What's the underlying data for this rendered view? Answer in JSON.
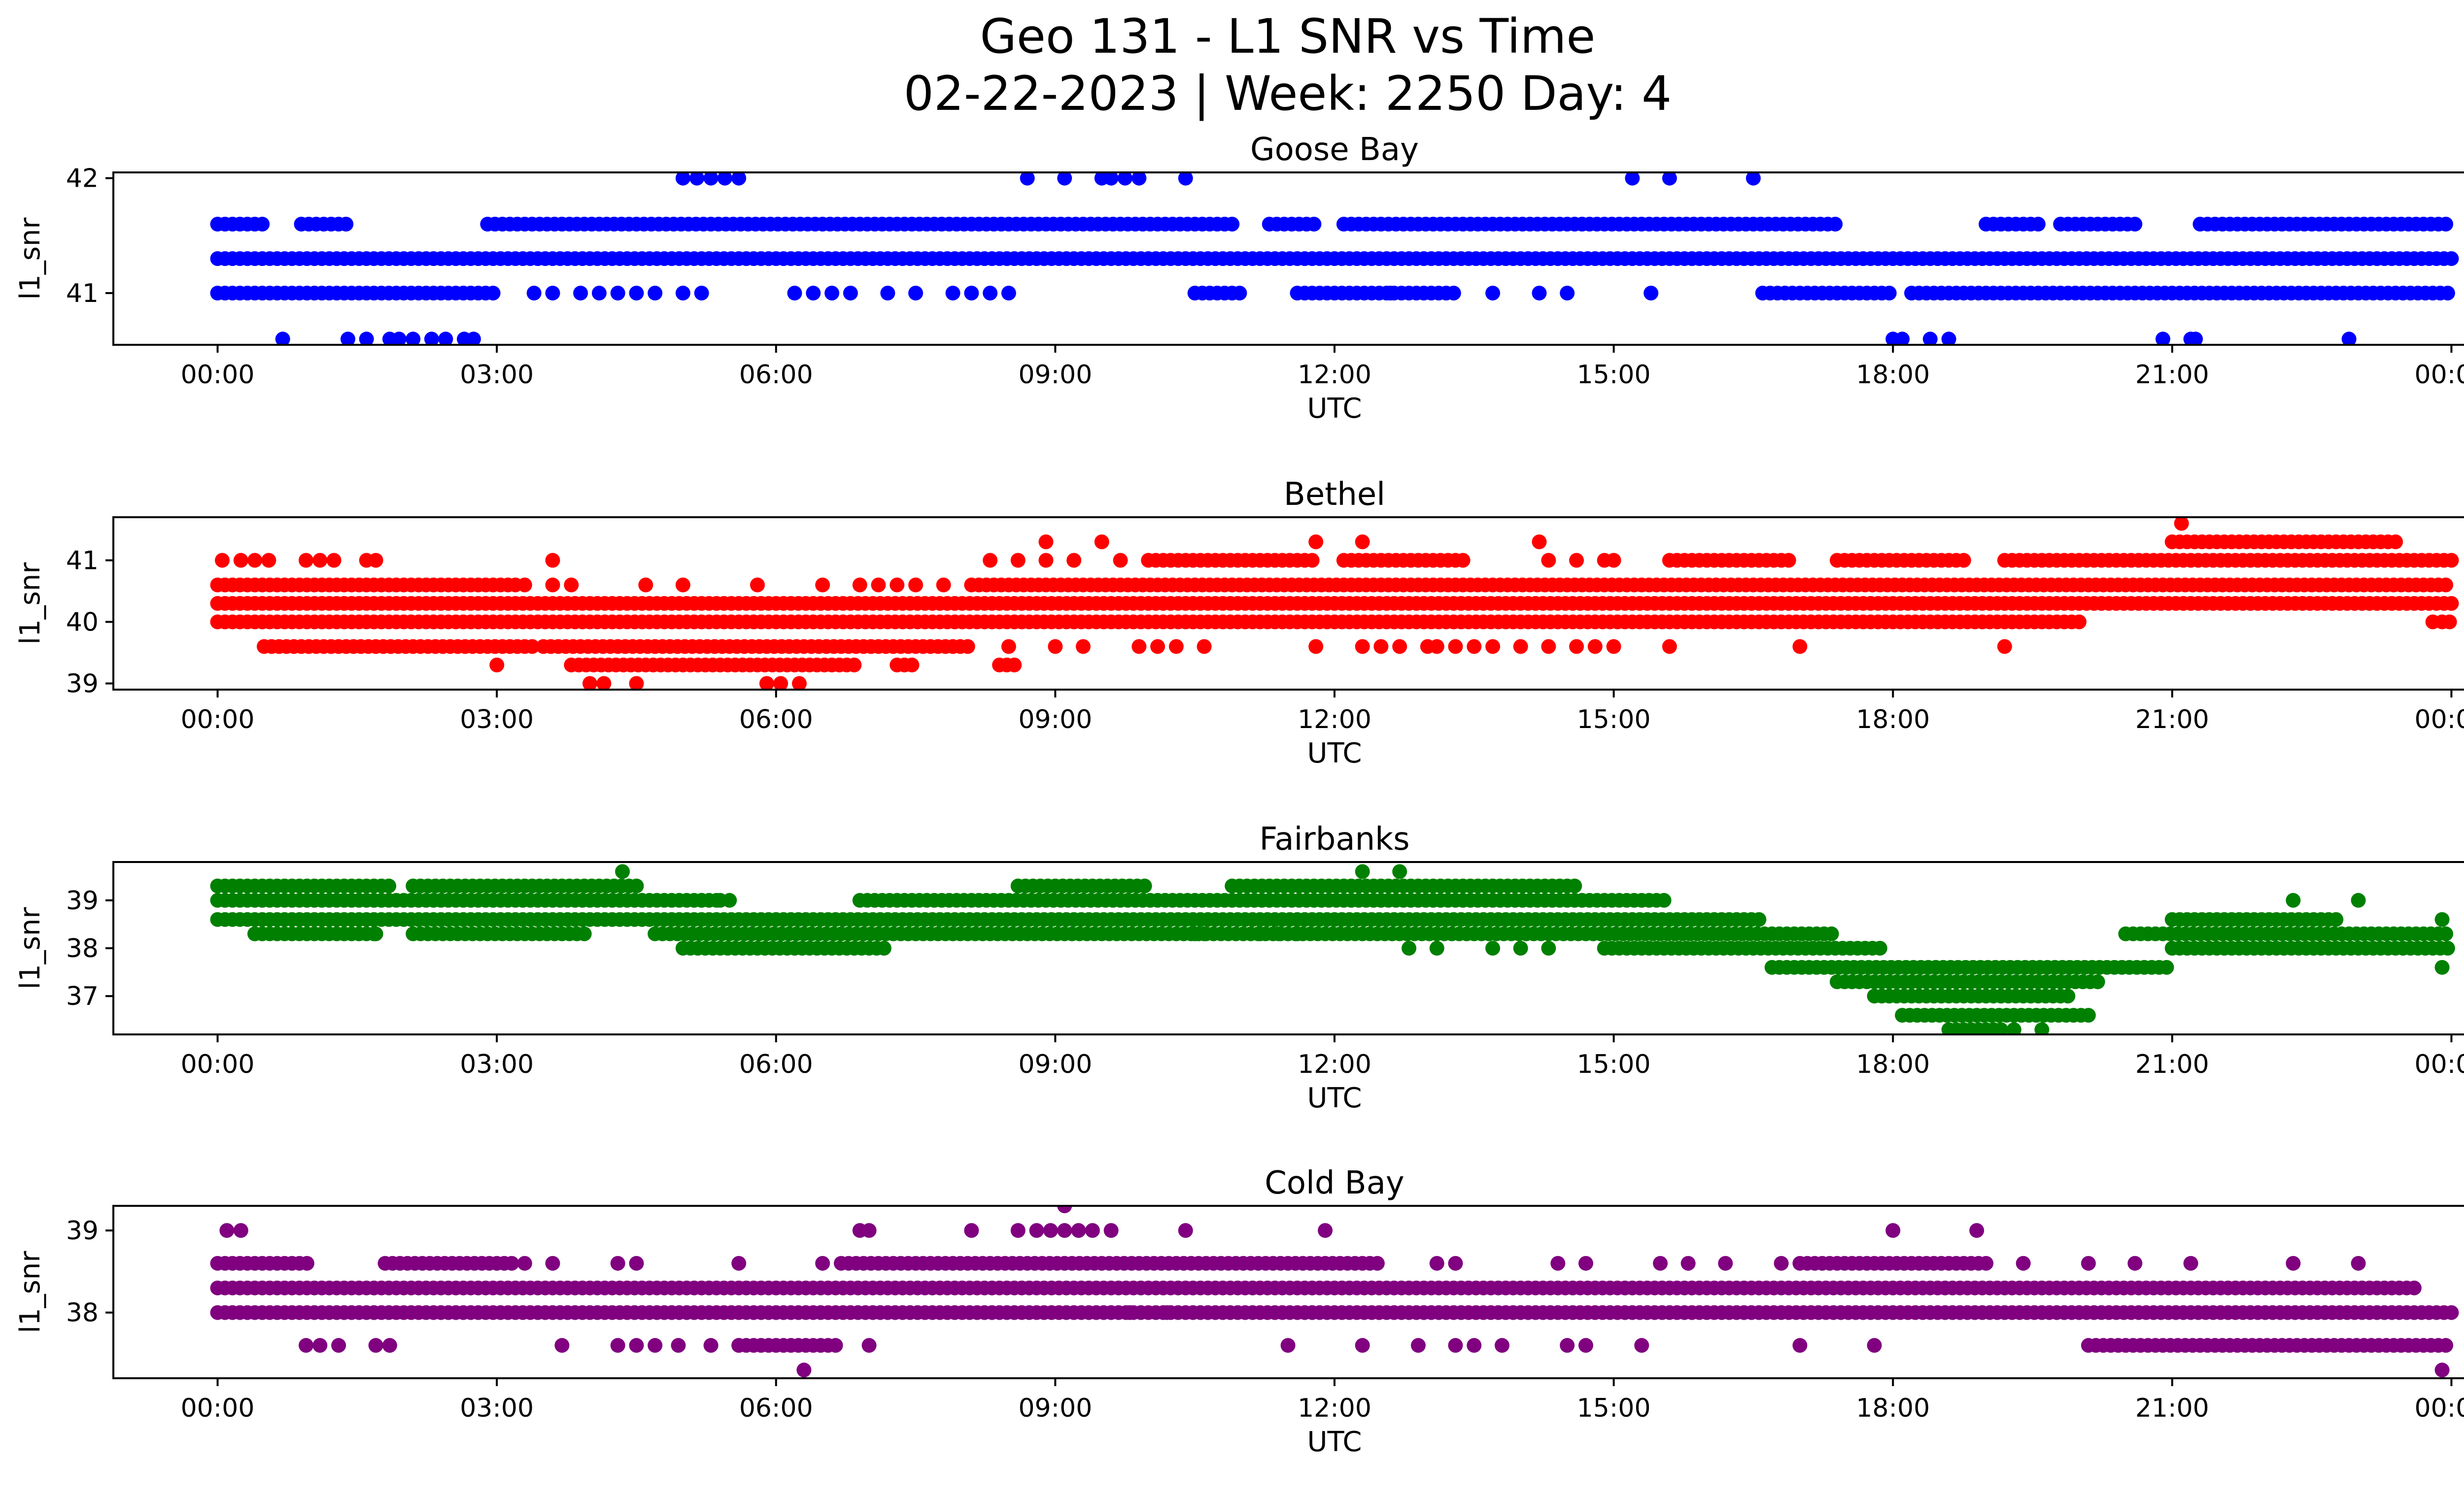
{
  "figure": {
    "title_line1": "Geo 131 - L1 SNR vs Time",
    "title_line2": "02-22-2023 | Week: 2250 Day: 4"
  },
  "chart_data": [
    {
      "type": "scatter",
      "title": "Goose Bay",
      "xlabel": "UTC",
      "ylabel": "l1_snr",
      "color": "#0000ff",
      "xlim_hours": [
        -1.12,
        25.12
      ],
      "ylim": [
        40.55,
        42.05
      ],
      "x_ticks": [
        0,
        3,
        6,
        9,
        12,
        15,
        18,
        21,
        24
      ],
      "x_tick_labels": [
        "00:00",
        "03:00",
        "06:00",
        "09:00",
        "12:00",
        "15:00",
        "18:00",
        "21:00",
        "00:00"
      ],
      "y_ticks": [
        41,
        42
      ],
      "y_tick_labels": [
        "41",
        "42"
      ],
      "bands": [
        {
          "y": 41.3,
          "ranges": [
            [
              0,
              24
            ]
          ]
        },
        {
          "y": 41.0,
          "ranges": [
            [
              0,
              3.0
            ],
            [
              10.5,
              11.0
            ],
            [
              11.6,
              13.3
            ],
            [
              16.6,
              18.0
            ],
            [
              18.2,
              24
            ]
          ]
        },
        {
          "y": 41.6,
          "ranges": [
            [
              0,
              0.5
            ],
            [
              0.9,
              1.4
            ],
            [
              2.9,
              10.9
            ],
            [
              11.3,
              11.8
            ],
            [
              12.1,
              17.4
            ],
            [
              19.0,
              19.6
            ],
            [
              19.8,
              20.6
            ],
            [
              21.3,
              24
            ]
          ]
        }
      ],
      "points": [
        {
          "y": 41.0,
          "x": [
            3.4,
            3.6,
            3.9,
            4.1,
            4.3,
            4.5,
            4.7,
            5.0,
            5.2,
            6.2,
            6.4,
            6.6,
            6.8,
            7.2,
            7.5,
            7.9,
            8.1,
            8.3,
            8.5,
            12.6,
            13.7,
            14.2,
            14.5,
            15.4
          ]
        },
        {
          "y": 42.0,
          "x": [
            5.0,
            5.15,
            5.3,
            5.45,
            5.6,
            8.7,
            9.1,
            9.5,
            9.6,
            9.75,
            9.9,
            10.4,
            15.2,
            15.6,
            16.5
          ]
        },
        {
          "y": 40.6,
          "x": [
            0.7,
            1.4,
            1.6,
            1.85,
            1.95,
            2.1,
            2.3,
            2.45,
            2.65,
            2.75,
            18.0,
            18.1,
            18.4,
            18.6,
            20.9,
            21.2,
            21.25,
            22.9
          ]
        }
      ]
    },
    {
      "type": "scatter",
      "title": "Bethel",
      "xlabel": "UTC",
      "ylabel": "l1_snr",
      "color": "#ff0000",
      "xlim_hours": [
        -1.12,
        25.12
      ],
      "ylim": [
        38.9,
        41.7
      ],
      "x_ticks": [
        0,
        3,
        6,
        9,
        12,
        15,
        18,
        21,
        24
      ],
      "x_tick_labels": [
        "00:00",
        "03:00",
        "06:00",
        "09:00",
        "12:00",
        "15:00",
        "18:00",
        "21:00",
        "00:00"
      ],
      "y_ticks": [
        39,
        40,
        41
      ],
      "y_tick_labels": [
        "39",
        "40",
        "41"
      ],
      "bands": [
        {
          "y": 40.3,
          "ranges": [
            [
              0,
              24
            ]
          ]
        },
        {
          "y": 40.0,
          "ranges": [
            [
              0,
              20.0
            ],
            [
              23.9,
              24
            ]
          ]
        },
        {
          "y": 40.6,
          "ranges": [
            [
              0,
              3.2
            ],
            [
              8.1,
              24
            ]
          ]
        },
        {
          "y": 39.6,
          "ranges": [
            [
              0.5,
              3.4
            ],
            [
              3.5,
              8.1
            ]
          ]
        },
        {
          "y": 39.3,
          "ranges": [
            [
              3.8,
              6.9
            ],
            [
              7.3,
              7.5
            ],
            [
              8.4,
              8.6
            ]
          ]
        },
        {
          "y": 41.0,
          "ranges": [
            [
              10.0,
              11.8
            ],
            [
              12.1,
              13.4
            ],
            [
              15.6,
              16.9
            ],
            [
              17.4,
              18.8
            ],
            [
              19.2,
              24
            ]
          ]
        },
        {
          "y": 41.3,
          "ranges": [
            [
              21.0,
              23.4
            ]
          ]
        }
      ],
      "points": [
        {
          "y": 41.0,
          "x": [
            0.05,
            0.25,
            0.4,
            0.55,
            0.95,
            1.1,
            1.25,
            1.6,
            1.7,
            3.6,
            8.3,
            8.6,
            8.9,
            9.2,
            9.7,
            14.3,
            14.6,
            14.9,
            15.0
          ]
        },
        {
          "y": 41.3,
          "x": [
            8.9,
            9.5,
            11.8,
            12.3,
            14.2
          ]
        },
        {
          "y": 41.6,
          "x": [
            21.1
          ]
        },
        {
          "y": 39.0,
          "x": [
            4.0,
            4.15,
            4.5,
            5.9,
            6.05,
            6.25
          ]
        },
        {
          "y": 39.6,
          "x": [
            8.5,
            9.0,
            9.3,
            9.9,
            10.1,
            10.3,
            10.6,
            11.8,
            12.3,
            12.5,
            12.7,
            13.0,
            13.1,
            13.3,
            13.5,
            13.7,
            14.0,
            14.3,
            14.6,
            14.8,
            15.0,
            15.6,
            17.0,
            19.2
          ]
        },
        {
          "y": 39.3,
          "x": [
            3.0
          ]
        },
        {
          "y": 40.6,
          "x": [
            3.3,
            3.6,
            3.8,
            4.6,
            5.0,
            5.8,
            6.5,
            6.9,
            7.1,
            7.3,
            7.5,
            7.8
          ]
        },
        {
          "y": 40.0,
          "x": [
            23.8
          ]
        }
      ]
    },
    {
      "type": "scatter",
      "title": "Fairbanks",
      "xlabel": "UTC",
      "ylabel": "l1_snr",
      "color": "#008000",
      "xlim_hours": [
        -1.12,
        25.12
      ],
      "ylim": [
        36.2,
        39.8
      ],
      "x_ticks": [
        0,
        3,
        6,
        9,
        12,
        15,
        18,
        21,
        24
      ],
      "x_tick_labels": [
        "00:00",
        "03:00",
        "06:00",
        "09:00",
        "12:00",
        "15:00",
        "18:00",
        "21:00",
        "00:00"
      ],
      "y_ticks": [
        37,
        38,
        39
      ],
      "y_tick_labels": [
        "37",
        "38",
        "39"
      ],
      "bands": [
        {
          "y": 38.6,
          "ranges": [
            [
              0,
              16.6
            ]
          ]
        },
        {
          "y": 39.0,
          "ranges": [
            [
              0,
              5.4
            ],
            [
              6.9,
              15.6
            ]
          ]
        },
        {
          "y": 38.3,
          "ranges": [
            [
              0.4,
              1.7
            ],
            [
              2.1,
              4.0
            ],
            [
              4.7,
              17.4
            ]
          ]
        },
        {
          "y": 39.3,
          "ranges": [
            [
              0,
              1.9
            ],
            [
              2.1,
              4.5
            ],
            [
              8.6,
              10.0
            ],
            [
              10.9,
              14.6
            ]
          ]
        },
        {
          "y": 38.0,
          "ranges": [
            [
              5.0,
              7.2
            ],
            [
              14.9,
              17.9
            ]
          ]
        },
        {
          "y": 37.6,
          "ranges": [
            [
              16.7,
              21.0
            ]
          ]
        },
        {
          "y": 37.3,
          "ranges": [
            [
              17.4,
              20.2
            ]
          ]
        },
        {
          "y": 37.0,
          "ranges": [
            [
              17.8,
              19.9
            ]
          ]
        },
        {
          "y": 36.6,
          "ranges": [
            [
              18.1,
              20.1
            ]
          ]
        },
        {
          "y": 36.3,
          "ranges": [
            [
              18.6,
              19.2
            ]
          ]
        },
        {
          "y": 38.0,
          "ranges": [
            [
              21.0,
              24
            ]
          ]
        },
        {
          "y": 38.3,
          "ranges": [
            [
              20.5,
              24
            ]
          ]
        },
        {
          "y": 38.6,
          "ranges": [
            [
              21.0,
              22.8
            ]
          ]
        }
      ],
      "points": [
        {
          "y": 39.6,
          "x": [
            4.35,
            12.3,
            12.7
          ]
        },
        {
          "y": 39.0,
          "x": [
            5.2,
            5.4,
            5.5,
            22.3,
            23.0
          ]
        },
        {
          "y": 38.3,
          "x": [
            0.4,
            1.7,
            10.5,
            10.6,
            11.2,
            11.4,
            11.6
          ]
        },
        {
          "y": 38.0,
          "x": [
            12.8,
            13.1,
            13.7,
            14.0,
            14.3
          ]
        },
        {
          "y": 36.3,
          "x": [
            19.3,
            19.6
          ]
        },
        {
          "y": 37.6,
          "x": [
            23.9
          ]
        },
        {
          "y": 38.6,
          "x": [
            23.9
          ]
        }
      ]
    },
    {
      "type": "scatter",
      "title": "Cold Bay",
      "xlabel": "UTC",
      "ylabel": "l1_snr",
      "color": "#800080",
      "xlim_hours": [
        -1.12,
        25.12
      ],
      "ylim": [
        37.2,
        39.3
      ],
      "x_ticks": [
        0,
        3,
        6,
        9,
        12,
        15,
        18,
        21,
        24
      ],
      "x_tick_labels": [
        "00:00",
        "03:00",
        "06:00",
        "09:00",
        "12:00",
        "15:00",
        "18:00",
        "21:00",
        "00:00"
      ],
      "y_ticks": [
        38,
        39
      ],
      "y_tick_labels": [
        "38",
        "39"
      ],
      "bands": [
        {
          "y": 38.3,
          "ranges": [
            [
              0,
              23.6
            ]
          ]
        },
        {
          "y": 38.0,
          "ranges": [
            [
              0,
              24
            ]
          ]
        },
        {
          "y": 38.6,
          "ranges": [
            [
              0,
              1.0
            ],
            [
              1.8,
              3.2
            ],
            [
              6.7,
              12.5
            ],
            [
              17.0,
              19.0
            ]
          ]
        },
        {
          "y": 37.6,
          "ranges": [
            [
              5.6,
              6.7
            ],
            [
              20.1,
              24
            ]
          ]
        }
      ],
      "points": [
        {
          "y": 39.0,
          "x": [
            0.1,
            0.25,
            6.9,
            7.0,
            8.1,
            8.6,
            8.8,
            8.95,
            9.1,
            9.25,
            9.4,
            9.6,
            10.4,
            11.9,
            18.0,
            18.9
          ]
        },
        {
          "y": 39.3,
          "x": [
            9.1
          ]
        },
        {
          "y": 37.3,
          "x": [
            6.3,
            23.9
          ]
        },
        {
          "y": 38.6,
          "x": [
            3.3,
            3.6,
            4.3,
            4.5,
            5.6,
            6.5,
            13.1,
            13.3,
            14.4,
            14.7,
            15.5,
            15.8,
            16.2,
            16.8,
            19.4,
            20.1,
            20.6,
            21.2,
            22.3,
            23.0
          ]
        },
        {
          "y": 37.6,
          "x": [
            0.95,
            1.1,
            1.3,
            1.7,
            1.85,
            3.7,
            4.3,
            4.5,
            4.7,
            4.95,
            5.3,
            5.6,
            7.0,
            11.5,
            12.3,
            12.9,
            13.3,
            13.5,
            13.8,
            14.5,
            14.7,
            15.3,
            17.0,
            17.8
          ]
        },
        {
          "y": 38.0,
          "x": [
            9.8,
            10.2
          ]
        }
      ]
    }
  ]
}
